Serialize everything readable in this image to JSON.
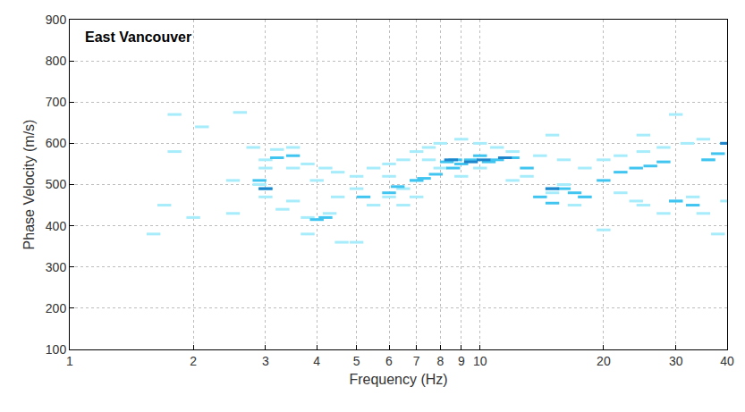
{
  "chart_data": {
    "type": "scatter",
    "title": "East Vancouver",
    "x_label": "Frequency (Hz)",
    "y_label": "Phase Velocity (m/s)",
    "log": "x",
    "grid": true,
    "xlim": [
      1,
      40
    ],
    "xticks": [
      1,
      2,
      3,
      4,
      5,
      6,
      7,
      8,
      9,
      10,
      20,
      30,
      40
    ],
    "ylim": [
      100,
      900
    ],
    "yticks": [
      100,
      200,
      300,
      400,
      500,
      600,
      700,
      800,
      900
    ],
    "marker": "dash",
    "series": [
      {
        "color": "#a6ecfb",
        "x": [
          1.8,
          2.6,
          2.1,
          1.8,
          2.8,
          3.2,
          3.0,
          3.5,
          3.8,
          4.2,
          4.5,
          5,
          5.5,
          6,
          6.5,
          7,
          7.5,
          8,
          9,
          10,
          11,
          12,
          14,
          16,
          18,
          20,
          22,
          25,
          28,
          32,
          35,
          15,
          25,
          30,
          3.5,
          4,
          4.3,
          3.8,
          4.6,
          5,
          3.3,
          2.9,
          2.5,
          5.5,
          6,
          6.5,
          7,
          3,
          3.5,
          2.5,
          1.7,
          1.6,
          20,
          25,
          30,
          35,
          38,
          40,
          12,
          13,
          15,
          17,
          18,
          22,
          24,
          28,
          10,
          8,
          9,
          7.5,
          6,
          5,
          4.5,
          33,
          36,
          16,
          2,
          3.8,
          6.5,
          7,
          3
        ],
        "y": [
          670,
          675,
          640,
          580,
          590,
          585,
          560,
          540,
          550,
          540,
          530,
          520,
          540,
          550,
          560,
          580,
          590,
          600,
          610,
          600,
          590,
          580,
          570,
          560,
          540,
          560,
          570,
          580,
          590,
          600,
          610,
          620,
          620,
          670,
          590,
          510,
          430,
          420,
          360,
          360,
          440,
          500,
          510,
          450,
          470,
          490,
          510,
          470,
          460,
          430,
          450,
          380,
          390,
          450,
          460,
          430,
          380,
          460,
          510,
          520,
          480,
          450,
          470,
          480,
          460,
          430,
          540,
          540,
          520,
          560,
          520,
          490,
          470,
          470,
          560,
          500,
          420,
          380,
          450,
          470,
          540
        ]
      },
      {
        "color": "#40c4f0",
        "x": [
          3,
          3.2,
          3.5,
          4,
          4.2,
          5.2,
          6,
          6.3,
          7,
          7.3,
          7.8,
          8.3,
          8.7,
          9,
          9.5,
          10,
          10.5,
          11,
          12,
          13,
          14,
          15,
          16,
          17,
          18,
          20,
          22,
          24,
          26,
          28,
          30,
          33,
          36,
          38,
          40,
          15,
          2.9,
          8.6
        ],
        "y": [
          490,
          565,
          570,
          415,
          420,
          470,
          480,
          495,
          510,
          515,
          525,
          555,
          560,
          550,
          560,
          570,
          555,
          560,
          565,
          540,
          470,
          455,
          490,
          480,
          470,
          510,
          530,
          540,
          545,
          555,
          460,
          450,
          560,
          575,
          600,
          490,
          510,
          540
        ]
      },
      {
        "color": "#1f86cc",
        "x": [
          8.5,
          9.5,
          10.2,
          11.5,
          15,
          40,
          3
        ],
        "y": [
          560,
          555,
          560,
          565,
          490,
          600,
          490
        ]
      }
    ]
  }
}
